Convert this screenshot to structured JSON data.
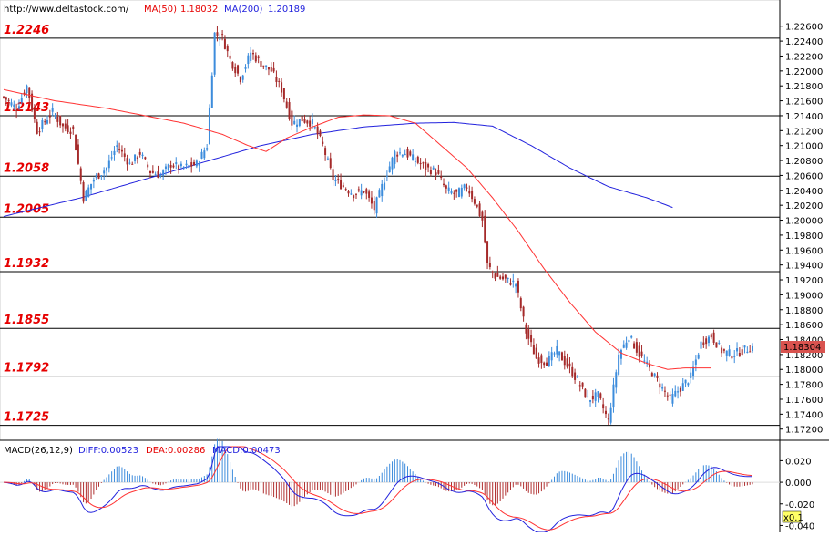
{
  "header": {
    "url": "http://www.deltastock.com/",
    "ma50_label": "MA(50)",
    "ma50_value": "1.18032",
    "ma200_label": "MA(200)",
    "ma200_value": "1.20189"
  },
  "current_price_tag": "1.18304",
  "macd_header": {
    "title": "MACD(26,12,9)",
    "diff": "DIFF:0.00523",
    "dea": "DEA:0.00286",
    "macd": "MACD:0.00473"
  },
  "macd_scale_tag": "x0.1",
  "colors": {
    "level_text": "#e60000",
    "ma50": "#ff3333",
    "ma200": "#2222dd",
    "candle_up": "#3c8cdc",
    "candle_down": "#a52a2a",
    "macd_hist_up": "#3c8cdc",
    "macd_hist_down": "#b03030",
    "price_tag_bg": "#d9534f"
  },
  "chart_data": [
    {
      "type": "candlestick",
      "y_ticks": [
        "1.22600",
        "1.22400",
        "1.22200",
        "1.22000",
        "1.21800",
        "1.21600",
        "1.21400",
        "1.21200",
        "1.21000",
        "1.20800",
        "1.20600",
        "1.20400",
        "1.20200",
        "1.20000",
        "1.19800",
        "1.19600",
        "1.19400",
        "1.19200",
        "1.19000",
        "1.18800",
        "1.18600",
        "1.18400",
        "1.18200",
        "1.18000",
        "1.17800",
        "1.17600",
        "1.17400",
        "1.17200"
      ],
      "ylim": [
        1.1716,
        1.2278
      ],
      "levels": [
        {
          "label": "1.2246",
          "value": 1.2244
        },
        {
          "label": "1.2143",
          "value": 1.214
        },
        {
          "label": "1.2058",
          "value": 1.2059
        },
        {
          "label": "1.2005",
          "value": 1.2004
        },
        {
          "label": "1.1932",
          "value": 1.1931
        },
        {
          "label": "1.1855",
          "value": 1.1855
        },
        {
          "label": "1.1792",
          "value": 1.1791
        },
        {
          "label": "1.1725",
          "value": 1.1725
        }
      ],
      "bars": 135,
      "close_anchors": [
        [
          0,
          1.2165
        ],
        [
          5,
          1.215
        ],
        [
          9,
          1.218
        ],
        [
          13,
          1.212
        ],
        [
          19,
          1.2145
        ],
        [
          23,
          1.2125
        ],
        [
          27,
          1.212
        ],
        [
          31,
          1.203
        ],
        [
          35,
          1.2055
        ],
        [
          40,
          1.207
        ],
        [
          44,
          1.21
        ],
        [
          49,
          1.2075
        ],
        [
          53,
          1.209
        ],
        [
          57,
          1.2065
        ],
        [
          61,
          1.206
        ],
        [
          65,
          1.2075
        ],
        [
          69,
          1.207
        ],
        [
          75,
          1.2075
        ],
        [
          79,
          1.21
        ],
        [
          82,
          1.225
        ],
        [
          85,
          1.2245
        ],
        [
          88,
          1.2215
        ],
        [
          92,
          1.219
        ],
        [
          96,
          1.2225
        ],
        [
          100,
          1.221
        ],
        [
          104,
          1.22
        ],
        [
          108,
          1.2175
        ],
        [
          112,
          1.213
        ],
        [
          116,
          1.2135
        ],
        [
          120,
          1.213
        ],
        [
          124,
          1.21
        ],
        [
          128,
          1.2055
        ],
        [
          132,
          1.2045
        ],
        [
          136,
          1.2035
        ],
        [
          140,
          1.204
        ],
        [
          144,
          1.2015
        ],
        [
          148,
          1.2055
        ],
        [
          152,
          1.209
        ],
        [
          156,
          1.209
        ],
        [
          160,
          1.208
        ],
        [
          164,
          1.207
        ],
        [
          168,
          1.2065
        ],
        [
          172,
          1.204
        ],
        [
          176,
          1.2035
        ],
        [
          180,
          1.2045
        ],
        [
          183,
          1.2025
        ],
        [
          186,
          1.2
        ],
        [
          188,
          1.194
        ],
        [
          191,
          1.1925
        ],
        [
          195,
          1.192
        ],
        [
          199,
          1.1915
        ],
        [
          203,
          1.185
        ],
        [
          207,
          1.1815
        ],
        [
          211,
          1.181
        ],
        [
          215,
          1.1825
        ],
        [
          219,
          1.1805
        ],
        [
          223,
          1.1785
        ],
        [
          227,
          1.176
        ],
        [
          231,
          1.1765
        ],
        [
          235,
          1.173
        ],
        [
          239,
          1.182
        ],
        [
          243,
          1.1845
        ],
        [
          247,
          1.182
        ],
        [
          251,
          1.18
        ],
        [
          255,
          1.178
        ],
        [
          259,
          1.176
        ],
        [
          263,
          1.1775
        ],
        [
          267,
          1.179
        ],
        [
          271,
          1.1835
        ],
        [
          275,
          1.1845
        ],
        [
          279,
          1.1825
        ],
        [
          283,
          1.182
        ],
        [
          287,
          1.1825
        ],
        [
          291,
          1.183
        ]
      ],
      "ma50": [
        [
          0,
          1.2175
        ],
        [
          20,
          1.216
        ],
        [
          40,
          1.215
        ],
        [
          55,
          1.214
        ],
        [
          70,
          1.213
        ],
        [
          85,
          1.2115
        ],
        [
          95,
          1.21
        ],
        [
          102,
          1.2092
        ],
        [
          110,
          1.211
        ],
        [
          120,
          1.2125
        ],
        [
          130,
          1.2138
        ],
        [
          140,
          1.2141
        ],
        [
          150,
          1.214
        ],
        [
          160,
          1.213
        ],
        [
          170,
          1.21
        ],
        [
          180,
          1.207
        ],
        [
          190,
          1.203
        ],
        [
          200,
          1.1985
        ],
        [
          210,
          1.1935
        ],
        [
          220,
          1.189
        ],
        [
          230,
          1.185
        ],
        [
          240,
          1.1822
        ],
        [
          250,
          1.1808
        ],
        [
          258,
          1.18
        ],
        [
          265,
          1.1802
        ],
        [
          275,
          1.1802
        ]
      ],
      "ma200": [
        [
          0,
          1.2005
        ],
        [
          30,
          1.203
        ],
        [
          60,
          1.206
        ],
        [
          85,
          1.2085
        ],
        [
          100,
          1.21
        ],
        [
          120,
          1.2115
        ],
        [
          140,
          1.2125
        ],
        [
          160,
          1.213
        ],
        [
          175,
          1.2131
        ],
        [
          190,
          1.2126
        ],
        [
          205,
          1.21
        ],
        [
          220,
          1.207
        ],
        [
          235,
          1.2045
        ],
        [
          250,
          1.203
        ],
        [
          260,
          1.2017
        ]
      ]
    },
    {
      "type": "macd",
      "y_ticks": [
        "0.020",
        "0.000",
        "-0.020",
        "-0.040"
      ],
      "ylim": [
        -0.043,
        0.033
      ]
    }
  ]
}
